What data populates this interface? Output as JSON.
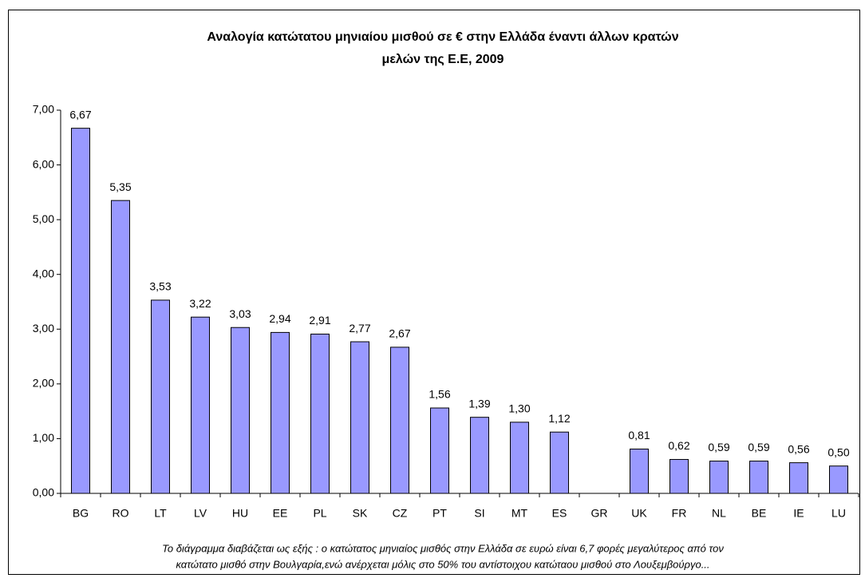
{
  "chart_data": {
    "type": "bar",
    "title": [
      "Αναλογία κατώτατου μηνιαίου μισθού σε € στην Ελλάδα έναντι άλλων  κρατών",
      "μελών της Ε.Ε, 2009"
    ],
    "categories": [
      "BG",
      "RO",
      "LT",
      "LV",
      "HU",
      "EE",
      "PL",
      "SK",
      "CZ",
      "PT",
      "SI",
      "MT",
      "ES",
      "GR",
      "UK",
      "FR",
      "NL",
      "BE",
      "IE",
      "LU"
    ],
    "values": [
      6.67,
      5.35,
      3.53,
      3.22,
      3.03,
      2.94,
      2.91,
      2.77,
      2.67,
      1.56,
      1.39,
      1.3,
      1.12,
      null,
      0.81,
      0.62,
      0.59,
      0.59,
      0.56,
      0.5
    ],
    "value_labels": [
      "6,67",
      "5,35",
      "3,53",
      "3,22",
      "3,03",
      "2,94",
      "2,91",
      "2,77",
      "2,67",
      "1,56",
      "1,39",
      "1,30",
      "1,12",
      null,
      "0,81",
      "0,62",
      "0,59",
      "0,59",
      "0,56",
      "0,50"
    ],
    "color": "#9999ff",
    "ylim": [
      0,
      7
    ],
    "yticks": [
      {
        "value": 0,
        "label": "0,00"
      },
      {
        "value": 1,
        "label": "1,00"
      },
      {
        "value": 2,
        "label": "2,00"
      },
      {
        "value": 3,
        "label": "3,00"
      },
      {
        "value": 4,
        "label": "4,00"
      },
      {
        "value": 5,
        "label": "5,00"
      },
      {
        "value": 6,
        "label": "6,00"
      },
      {
        "value": 7,
        "label": "7,00"
      }
    ],
    "grid": false,
    "annotations": [
      "Το διάγραμμα διαβάζεται ως εξής : ο κατώτατος μηνιαίος μισθός στην Ελλάδα σε ευρώ είναι 6,7 φορές μεγαλύτερος από τον",
      "κατώτατο μισθό στην Βουλγαρία,ενώ ανέρχεται μόλις στο 50% του αντίστοιχου κατώταου μισθού στο Λουξεμβούργο..."
    ]
  }
}
